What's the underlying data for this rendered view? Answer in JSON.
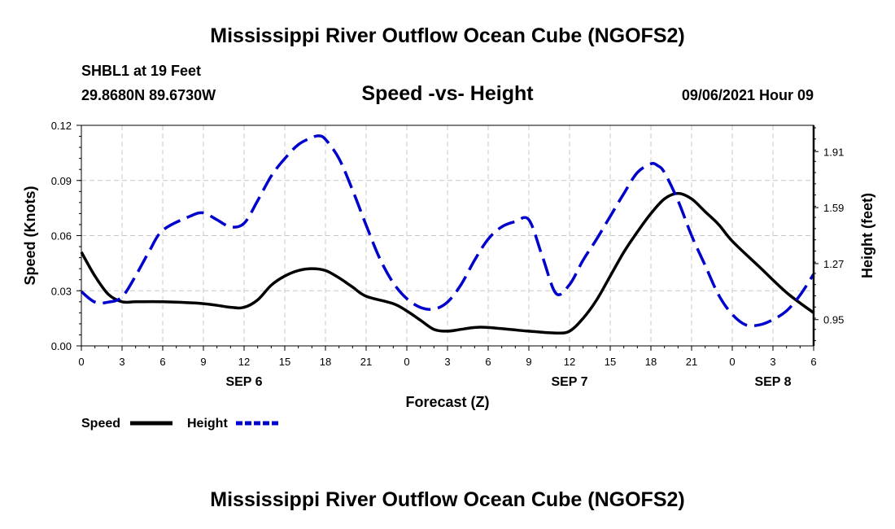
{
  "header": {
    "title": "Mississippi River Outflow Ocean Cube (NGOFS2)",
    "station": "SHBL1 at 19 Feet",
    "coords": "29.8680N  89.6730W",
    "chart_title": "Speed -vs- Height",
    "datetime": "09/06/2021 Hour 09"
  },
  "footer": {
    "title": "Mississippi River Outflow Ocean Cube (NGOFS2)"
  },
  "colors": {
    "speed": "#000000",
    "height": "#0000cc",
    "grid": "#c8c8c8"
  },
  "chart_data": {
    "type": "line",
    "title": "Speed -vs- Height",
    "xlabel": "Forecast (Z)",
    "ylabel": "Speed (Knots)",
    "y2label": "Height (feet)",
    "x_range": [
      0,
      54
    ],
    "x_unit": "hours from 2021-09-06 00Z",
    "x_ticks": [
      0,
      3,
      6,
      9,
      12,
      15,
      18,
      21,
      24,
      27,
      30,
      33,
      36,
      39,
      42,
      45,
      48,
      51,
      54
    ],
    "x_tick_labels": [
      "0",
      "3",
      "6",
      "9",
      "12",
      "15",
      "18",
      "21",
      "0",
      "3",
      "6",
      "9",
      "12",
      "15",
      "18",
      "21",
      "0",
      "3",
      "6"
    ],
    "day_labels": [
      {
        "x": 12,
        "label": "SEP 6"
      },
      {
        "x": 36,
        "label": "SEP 7"
      },
      {
        "x": 51,
        "label": "SEP 8"
      }
    ],
    "ylim": [
      0,
      0.12
    ],
    "y_ticks": [
      0,
      0.03,
      0.06,
      0.09,
      0.12
    ],
    "y_tick_labels": [
      "0.00",
      "0.03",
      "0.06",
      "0.09",
      "0.12"
    ],
    "y2lim": [
      0.8,
      2.06
    ],
    "y2_ticks": [
      0.95,
      1.27,
      1.59,
      1.91
    ],
    "y2_tick_labels": [
      "0.95",
      "1.27",
      "1.59",
      "1.91"
    ],
    "grid": true,
    "legend_position": "bottom-left",
    "series": [
      {
        "name": "Speed",
        "axis": "left",
        "style": "solid",
        "x": [
          0,
          1,
          2,
          3,
          4,
          6,
          9,
          11,
          12,
          13,
          14,
          15,
          16,
          17,
          18,
          19,
          20,
          21,
          23,
          24,
          25,
          26,
          27,
          28,
          29,
          30,
          33,
          35,
          36,
          37,
          38,
          39,
          40,
          41,
          42,
          43,
          44,
          45,
          46,
          47,
          48,
          50,
          52,
          54
        ],
        "y": [
          0.051,
          0.038,
          0.028,
          0.024,
          0.024,
          0.024,
          0.023,
          0.021,
          0.021,
          0.025,
          0.033,
          0.038,
          0.041,
          0.042,
          0.041,
          0.037,
          0.032,
          0.027,
          0.023,
          0.019,
          0.014,
          0.009,
          0.008,
          0.009,
          0.01,
          0.01,
          0.008,
          0.007,
          0.008,
          0.015,
          0.025,
          0.038,
          0.051,
          0.062,
          0.072,
          0.08,
          0.083,
          0.08,
          0.073,
          0.066,
          0.057,
          0.043,
          0.029,
          0.018
        ]
      },
      {
        "name": "Height",
        "axis": "right",
        "style": "dashed",
        "x": [
          0,
          1,
          2,
          3,
          4,
          5,
          6,
          8,
          9,
          10,
          11,
          12,
          13,
          14,
          15,
          16,
          17,
          17.5,
          18,
          19,
          20,
          21,
          22,
          23,
          24,
          25,
          26,
          27,
          28,
          29,
          30,
          31,
          32,
          33,
          34,
          35,
          36,
          37,
          38,
          39,
          40,
          41,
          42,
          42.5,
          43,
          44,
          45,
          46,
          47,
          48,
          49,
          50,
          51,
          52,
          53,
          54
        ],
        "y": [
          1.11,
          1.05,
          1.05,
          1.08,
          1.2,
          1.34,
          1.46,
          1.54,
          1.56,
          1.52,
          1.48,
          1.5,
          1.63,
          1.77,
          1.87,
          1.95,
          1.99,
          2.0,
          1.98,
          1.87,
          1.69,
          1.49,
          1.3,
          1.16,
          1.07,
          1.02,
          1.01,
          1.05,
          1.15,
          1.29,
          1.41,
          1.48,
          1.51,
          1.52,
          1.31,
          1.1,
          1.15,
          1.29,
          1.41,
          1.54,
          1.67,
          1.79,
          1.84,
          1.83,
          1.79,
          1.63,
          1.43,
          1.26,
          1.09,
          0.98,
          0.92,
          0.92,
          0.95,
          1.0,
          1.09,
          1.21
        ]
      }
    ]
  },
  "legend": {
    "speed_label": "Speed",
    "height_label": "Height"
  }
}
